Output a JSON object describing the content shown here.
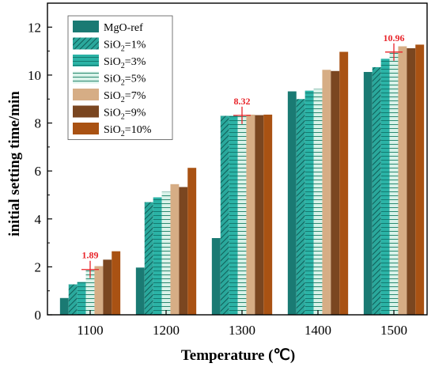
{
  "chart_data": {
    "type": "bar",
    "xlabel": "Temperature (℃)",
    "ylabel": "initial setting time/min",
    "ylim": [
      0,
      13
    ],
    "yticks": [
      0,
      2,
      4,
      6,
      8,
      10,
      12
    ],
    "categories": [
      "1100",
      "1200",
      "1300",
      "1400",
      "1500"
    ],
    "series": [
      {
        "name_main": "MgO-ref",
        "name_sub": "",
        "name_tail": "",
        "color": "#1a7a73",
        "pattern": "solid",
        "values": [
          0.7,
          1.97,
          3.2,
          9.32,
          10.13
        ]
      },
      {
        "name_main": "SiO",
        "name_sub": "2",
        "name_tail": "=1%",
        "color": "#1f8f86",
        "pattern": "diagonal",
        "values": [
          1.27,
          4.7,
          8.3,
          9.0,
          10.33
        ]
      },
      {
        "name_main": "SiO",
        "name_sub": "2",
        "name_tail": "=3%",
        "color": "#2bb3a6",
        "pattern": "hlines",
        "values": [
          1.37,
          4.9,
          8.3,
          9.35,
          10.68
        ]
      },
      {
        "name_main": "SiO",
        "name_sub": "2",
        "name_tail": "=5%",
        "color": "#cdeee3",
        "pattern": "hlines-light",
        "values": [
          1.89,
          5.13,
          8.32,
          9.42,
          10.96
        ]
      },
      {
        "name_main": "SiO",
        "name_sub": "2",
        "name_tail": "=7%",
        "color": "#d6ad85",
        "pattern": "solid",
        "values": [
          2.03,
          5.45,
          8.35,
          10.22,
          11.2
        ]
      },
      {
        "name_main": "SiO",
        "name_sub": "2",
        "name_tail": "=9%",
        "color": "#7a4620",
        "pattern": "solid",
        "values": [
          2.3,
          5.33,
          8.33,
          10.17,
          11.12
        ]
      },
      {
        "name_main": "SiO",
        "name_sub": "2",
        "name_tail": "=10%",
        "color": "#a95213",
        "pattern": "solid",
        "values": [
          2.65,
          6.13,
          8.35,
          10.97,
          11.27
        ]
      }
    ],
    "annotations": [
      {
        "label": "1.89",
        "category": "1100",
        "y": 1.89
      },
      {
        "label": "8.32",
        "category": "1300",
        "y": 8.32
      },
      {
        "label": "10.96",
        "category": "1500",
        "y": 10.96
      }
    ]
  }
}
